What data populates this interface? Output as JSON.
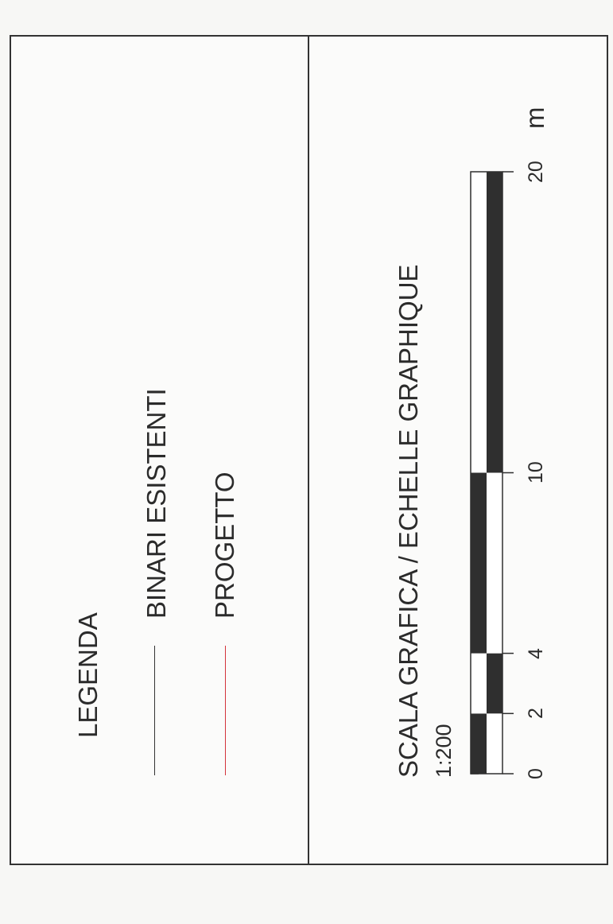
{
  "legend": {
    "title": "LEGENDA",
    "items": [
      {
        "label": "BINARI ESISTENTI",
        "color": "#333333"
      },
      {
        "label": "PROGETTO",
        "color": "#d4343a"
      }
    ]
  },
  "scale": {
    "title": "SCALA GRAFICA / ECHELLE GRAPHIQUE",
    "ratio": "1:200",
    "unit": "m",
    "ticks": [
      "0",
      "2",
      "4",
      "10",
      "20"
    ],
    "segments": [
      {
        "from": 0,
        "to": 2,
        "left_filled": true
      },
      {
        "from": 2,
        "to": 4,
        "left_filled": false
      },
      {
        "from": 4,
        "to": 10,
        "left_filled": true
      },
      {
        "from": 10,
        "to": 20,
        "left_filled": false
      }
    ],
    "max": 20
  }
}
